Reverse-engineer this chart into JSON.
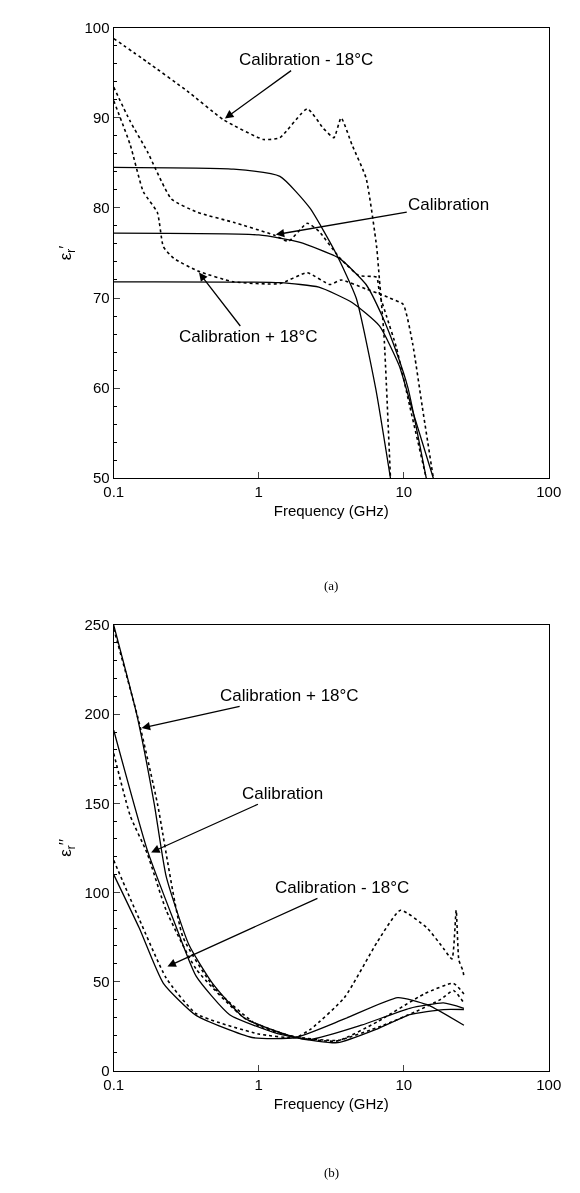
{
  "chart_data": [
    {
      "type": "line",
      "xlabel": "Frequency (GHz)",
      "ylabel": "ε$_{r}$′",
      "log": "x",
      "xlim": [
        0.1,
        100
      ],
      "xticks": [
        0.1,
        1,
        10,
        100
      ],
      "ylim": [
        50,
        100
      ],
      "yticks": [
        50,
        60,
        70,
        80,
        90,
        100
      ],
      "marker": "none",
      "annotations": [
        {
          "text": "Calibration - 18°C",
          "x": 0.57,
          "y": 89.8
        },
        {
          "text": "Calibration",
          "x": 1.27,
          "y": 77
        },
        {
          "text": "Calibration + 18°C",
          "x": 0.38,
          "y": 73
        },
        "(a)"
      ],
      "series": [
        {
          "color": "#000000",
          "line_style": "solid",
          "x": [
            0.1,
            0.67,
            1.4,
            2.25,
            3.4,
            4.7,
            6.4,
            8.1
          ],
          "values": [
            84.5,
            84.3,
            83.5,
            80,
            75,
            70,
            60,
            50
          ]
        },
        {
          "color": "#000000",
          "line_style": "solid",
          "x": [
            0.1,
            1.0,
            1.9,
            3.6,
            5.5,
            7.1,
            8.9,
            10.7,
            14.3
          ],
          "values": [
            77.2,
            77.0,
            76.2,
            74.4,
            71.5,
            68,
            64,
            60,
            50
          ]
        },
        {
          "color": "#000000",
          "line_style": "solid",
          "x": [
            0.1,
            1.4,
            2.6,
            4.4,
            6.8,
            9.3,
            11.5,
            16
          ],
          "values": [
            71.8,
            71.7,
            71.2,
            69.5,
            66.9,
            62.5,
            57.5,
            50
          ]
        },
        {
          "color": "#000000",
          "line_style": "dotted",
          "x": [
            0.1,
            0.17,
            0.32,
            0.57,
            1.08,
            1.4,
            2.16,
            2.8,
            3.3,
            3.7,
            4.4,
            5.5,
            6.5,
            6.8,
            7.3,
            8.1
          ],
          "values": [
            98.8,
            96.2,
            93,
            89.8,
            87.6,
            87.8,
            91,
            88.8,
            87.8,
            90,
            87,
            83.3,
            75.7,
            72,
            66,
            50
          ]
        },
        {
          "color": "#000000",
          "line_style": "dotted",
          "x": [
            0.1,
            0.13,
            0.17,
            0.25,
            0.38,
            0.67,
            1.27,
            1.6,
            2.16,
            2.6,
            3.6,
            4.9,
            6.5,
            6.8,
            7.6,
            8.9,
            11,
            14.3
          ],
          "values": [
            93.4,
            89.6,
            86.3,
            81,
            79.5,
            78.4,
            77,
            76.3,
            78.3,
            77.4,
            74.5,
            72.5,
            72.3,
            70.5,
            68,
            64.5,
            58,
            50
          ]
        },
        {
          "color": "#000000",
          "line_style": "dotted",
          "x": [
            0.1,
            0.13,
            0.16,
            0.2,
            0.22,
            0.26,
            0.38,
            0.67,
            1.4,
            2.16,
            3.1,
            3.7,
            5.5,
            7.0,
            8.0,
            9.9,
            11.5,
            13.4,
            16
          ],
          "values": [
            91.9,
            87,
            81.8,
            79.5,
            75.7,
            74.4,
            73,
            71.8,
            71.6,
            72.8,
            71.5,
            72,
            71,
            70.4,
            70,
            69.3,
            65,
            58,
            50
          ]
        }
      ]
    },
    {
      "type": "line",
      "xlabel": "Frequency (GHz)",
      "ylabel": "ε$_{r}$′′",
      "log": "x",
      "xlim": [
        0.1,
        100
      ],
      "xticks": [
        0.1,
        1,
        10,
        100
      ],
      "ylim": [
        0,
        250
      ],
      "yticks": [
        0,
        50,
        100,
        150,
        200,
        250
      ],
      "marker": "none",
      "annotations": [
        {
          "text": "Calibration + 18°C",
          "x": 0.151,
          "y": 192
        },
        {
          "text": "Calibration",
          "x": 0.176,
          "y": 122
        },
        {
          "text": "Calibration - 18°C",
          "x": 0.228,
          "y": 58
        },
        "(b)"
      ],
      "series": [
        {
          "color": "#000000",
          "line_style": "solid",
          "x": [
            0.1,
            0.144,
            0.19,
            0.23,
            0.33,
            0.48,
            0.8,
            1.8,
            3.5,
            6.6,
            11,
            18.8,
            26
          ],
          "values": [
            250,
            200,
            150,
            109,
            70.6,
            49,
            29.4,
            18.6,
            15.7,
            23.5,
            31.4,
            34.3,
            34.3
          ]
        },
        {
          "color": "#000000",
          "line_style": "solid",
          "x": [
            0.1,
            0.17,
            0.26,
            0.37,
            0.63,
            1.37,
            2.3,
            5.1,
            11,
            18.8,
            26
          ],
          "values": [
            191,
            124,
            84,
            53,
            31.4,
            20.6,
            17.6,
            25.5,
            35,
            38,
            35
          ]
        },
        {
          "color": "#000000",
          "line_style": "solid",
          "x": [
            0.1,
            0.15,
            0.22,
            0.37,
            0.9,
            1.8,
            3.9,
            9.1,
            14.5,
            26
          ],
          "values": [
            110,
            80,
            49,
            31,
            18.6,
            18.6,
            29,
            41,
            37,
            25.5
          ]
        },
        {
          "color": "#000000",
          "line_style": "dotted",
          "x": [
            0.1,
            0.15,
            0.2,
            0.3,
            0.5,
            1,
            1.8,
            3.5,
            7,
            12,
            18,
            22,
            26
          ],
          "values": [
            248,
            195,
            150,
            75,
            46,
            25,
            19,
            17,
            25,
            33,
            40,
            45,
            38
          ]
        },
        {
          "color": "#000000",
          "line_style": "dotted",
          "x": [
            0.1,
            0.13,
            0.17,
            0.23,
            0.37,
            0.8,
            1.8,
            3.5,
            6.6,
            13.8,
            22,
            26
          ],
          "values": [
            178,
            143,
            122,
            90,
            57,
            29.4,
            18.6,
            16.7,
            27.5,
            43,
            49,
            43
          ]
        },
        {
          "color": "#000000",
          "line_style": "dotted",
          "x": [
            0.1,
            0.15,
            0.23,
            0.37,
            1,
            1.8,
            2.3,
            3.9,
            6.6,
            9.5,
            14.5,
            18.8,
            21.5,
            23,
            24,
            25.6,
            26
          ],
          "values": [
            118,
            85,
            52,
            32,
            20.6,
            18.6,
            23.5,
            41,
            72.5,
            90,
            80,
            68.6,
            62.7,
            90,
            62,
            56,
            52.9
          ]
        }
      ]
    }
  ]
}
